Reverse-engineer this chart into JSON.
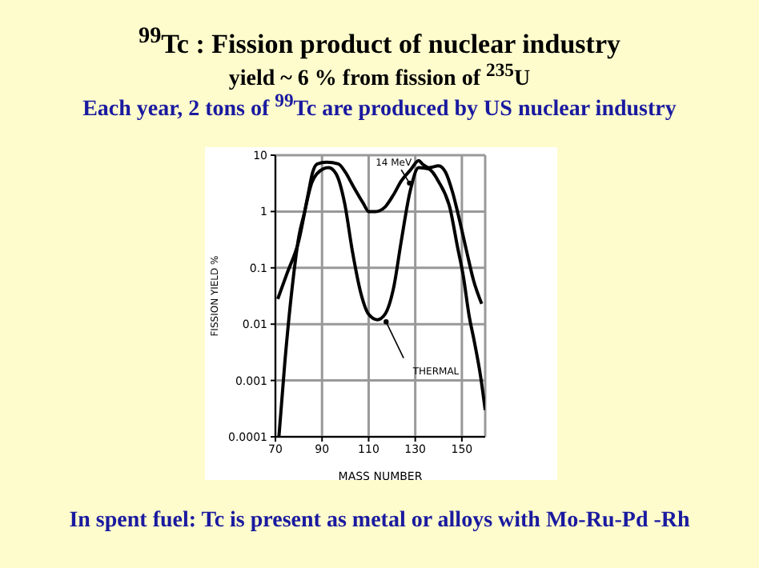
{
  "chart_data": {
    "type": "line",
    "title": "$^{99}$Tc : Fission product of nuclear industry",
    "subtitle": "yield ~ 6 % from fission of $^{235}$U",
    "annotations": [
      "Each year, 2 tons of $^{99}$Tc are produced by US nuclear industry",
      "In spent fuel: Tc is present as metal or alloys with Mo-Ru-Pd -Rh"
    ],
    "xlabel": "MASS NUMBER",
    "ylabel": "FISSION YIELD %",
    "log": "y",
    "grid": true,
    "xlim": [
      70,
      160
    ],
    "xticks": [
      70,
      90,
      110,
      130,
      150
    ],
    "ylim": [
      0.0001,
      10
    ],
    "yticks": [
      0.0001,
      0.001,
      0.01,
      0.1,
      1,
      10
    ],
    "line_style": "solid",
    "marker": "none",
    "series": [
      {
        "name": "14 MeV",
        "color": "#000000",
        "x": [
          71,
          75,
          80,
          84,
          86,
          88,
          92,
          97,
          100,
          103,
          107.7,
          110,
          113,
          117,
          120.7,
          124,
          128,
          131.5,
          133,
          136,
          140,
          143,
          146,
          149,
          152,
          155,
          158.5
        ],
        "values": [
          0.028,
          0.08,
          0.3,
          2,
          5,
          7,
          7.5,
          7,
          5,
          3,
          1.4,
          1,
          1,
          1.2,
          2,
          3.5,
          5.5,
          8,
          7,
          6,
          6.5,
          5,
          2.2,
          0.7,
          0.2,
          0.06,
          0.023
        ]
      },
      {
        "name": "THERMAL",
        "color": "#000000",
        "x": [
          71.5,
          74,
          77.7,
          80,
          82.3,
          85.8,
          90.5,
          92.8,
          96,
          99.7,
          103,
          106.7,
          110,
          113.7,
          117,
          120.7,
          124,
          127.7,
          131.5,
          135.7,
          140,
          145,
          148,
          150.7,
          153,
          155.3,
          158,
          160
        ],
        "values": [
          0.0001,
          0.002,
          0.068,
          0.35,
          0.9,
          3.4,
          5.7,
          6,
          4.7,
          1.4,
          0.2,
          0.035,
          0.015,
          0.012,
          0.015,
          0.044,
          0.3,
          2.2,
          6,
          5.7,
          3.4,
          1.1,
          0.25,
          0.068,
          0.015,
          0.005,
          0.0012,
          0.0003
        ]
      }
    ]
  }
}
